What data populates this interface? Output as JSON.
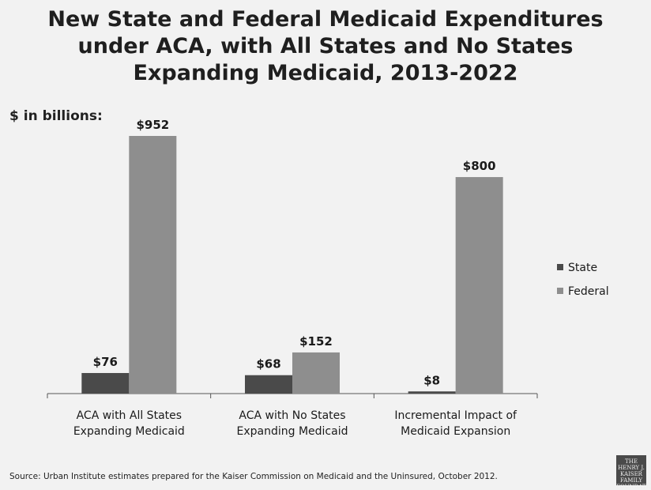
{
  "title_lines": [
    "New State and Federal Medicaid Expenditures",
    "under ACA, with All States and No States",
    "Expanding Medicaid, 2013-2022"
  ],
  "unit_label": "$ in billions:",
  "source": "Source: Urban Institute estimates prepared for the Kaiser Commission on Medicaid and the Uninsured, October 2012.",
  "logo_lines": [
    "THE HENRY J.",
    "KAISER",
    "FAMILY",
    "FOUNDATION"
  ],
  "colors": {
    "state": "#4a4a4a",
    "federal": "#8e8e8e",
    "axis": "#555555",
    "background": "#f2f2f2"
  },
  "chart_data": {
    "type": "bar",
    "title": "New State and Federal Medicaid Expenditures under ACA, with All States and No States Expanding Medicaid, 2013-2022",
    "ylabel": "$ in billions:",
    "ylim": [
      0,
      952
    ],
    "categories": [
      [
        "ACA with All States",
        "Expanding Medicaid"
      ],
      [
        "ACA with No States",
        "Expanding Medicaid"
      ],
      [
        "Incremental Impact of",
        "Medicaid Expansion"
      ]
    ],
    "series": [
      {
        "name": "State",
        "values": [
          76,
          68,
          8
        ],
        "labels": [
          "$76",
          "$68",
          "$8"
        ],
        "color": "#4a4a4a"
      },
      {
        "name": "Federal",
        "values": [
          952,
          152,
          800
        ],
        "labels": [
          "$952",
          "$152",
          "$800"
        ],
        "color": "#8e8e8e"
      }
    ],
    "legend_position": "right",
    "grid": false
  }
}
